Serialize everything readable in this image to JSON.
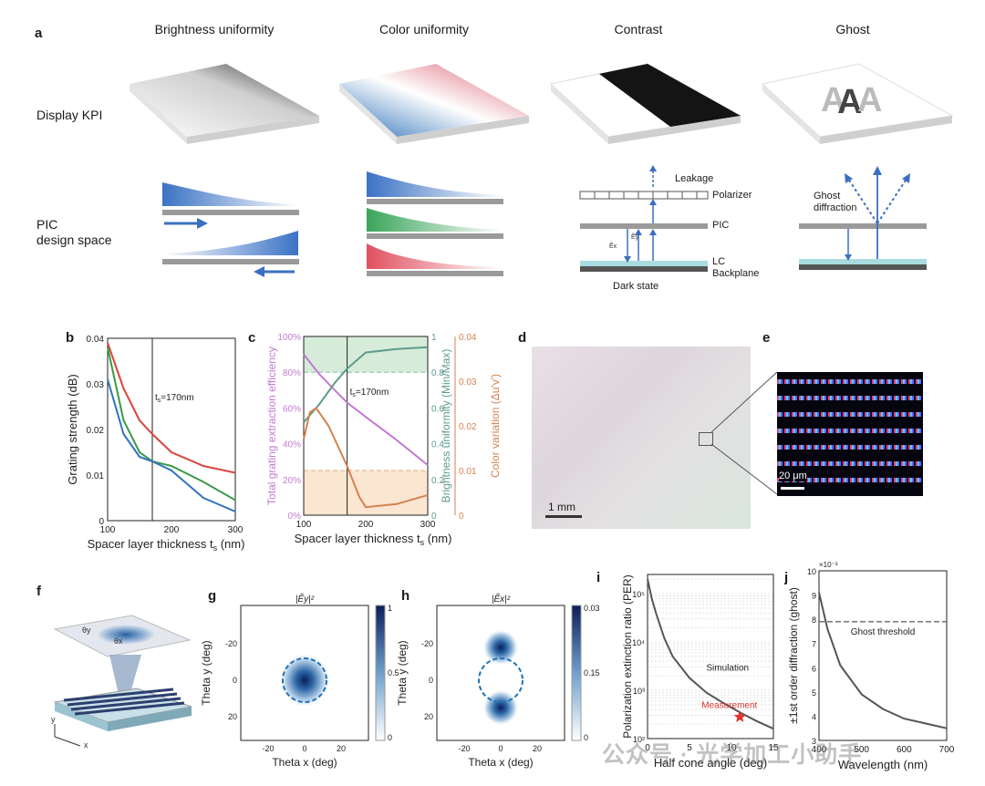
{
  "panel_a": {
    "label": "a",
    "columns": [
      "Brightness uniformity",
      "Color uniformity",
      "Contrast",
      "Ghost"
    ],
    "row_display": "Display KPI",
    "row_pic": [
      "PIC",
      "design space"
    ],
    "contrast_labels": {
      "leakage": "Leakage",
      "polarizer": "Polarizer",
      "pic": "PIC",
      "lc": "LC",
      "backplane": "Backplane",
      "dark": "Dark state"
    },
    "ghost_labels": {
      "diffraction": [
        "Ghost",
        "diffraction"
      ]
    }
  },
  "panel_b": {
    "label": "b",
    "annotation": "t",
    "annotation_sub": "s",
    "annotation_tail": "=170nm",
    "ylabel": "Grating strength (dB)",
    "xlabel": "Spacer layer thickness t",
    "xlabel_sub": "s",
    "xlabel_tail": " (nm)",
    "yticks": [
      "0",
      "0.01",
      "0.02",
      "0.03",
      "0.04"
    ],
    "xticks": [
      "100",
      "200",
      "300"
    ]
  },
  "panel_c": {
    "label": "c",
    "annotation": "t",
    "annotation_sub": "s",
    "annotation_tail": "=170nm",
    "ylabel_left": "Total grating extraction efficiency",
    "ylabel_mid": "Brightness uniformity (Min/Max)",
    "ylabel_right": "Color variation (Δu'v')",
    "xlabel": "Spacer layer thickness t",
    "xlabel_sub": "s",
    "xlabel_tail": " (nm)",
    "yticks_left": [
      "0%",
      "20%",
      "40%",
      "60%",
      "80%",
      "100%"
    ],
    "yticks_mid": [
      "0",
      "0.2",
      "0.4",
      "0.6",
      "0.8",
      "1"
    ],
    "yticks_right": [
      "0",
      "0.01",
      "0.02",
      "0.03",
      "0.04"
    ],
    "xticks": [
      "100",
      "200",
      "300"
    ]
  },
  "panel_d": {
    "label": "d",
    "scalebar": "1 mm"
  },
  "panel_e": {
    "label": "e",
    "scalebar": "20 μm"
  },
  "panel_f": {
    "label": "f",
    "axes": {
      "x": "x",
      "y": "y",
      "theta_y": "θy",
      "theta_x": "θx"
    }
  },
  "panel_g": {
    "label": "g",
    "title": "|Ẽy|²",
    "xlabel": "Theta x (deg)",
    "ylabel": "Theta y (deg)",
    "xticks": [
      "-20",
      "0",
      "20"
    ],
    "yticks": [
      "-20",
      "0",
      "20"
    ],
    "cbar": [
      "1",
      "0.5",
      "0"
    ]
  },
  "panel_h": {
    "label": "h",
    "title": "|Ẽx|²",
    "xlabel": "Theta x (deg)",
    "ylabel": "Theta y (deg)",
    "xticks": [
      "-20",
      "0",
      "20"
    ],
    "yticks": [
      "-20",
      "0",
      "20"
    ],
    "cbar": [
      "0.03",
      "0.15",
      "0"
    ]
  },
  "panel_i": {
    "label": "i",
    "ylabel": "Polarization extinction ratio (PER)",
    "xlabel": "Half cone angle (deg)",
    "yticks": [
      "10²",
      "10³",
      "10⁴",
      "10⁵"
    ],
    "xticks": [
      "0",
      "5",
      "10",
      "15"
    ],
    "sim_label": "Simulation",
    "meas_label": "Measurement"
  },
  "panel_j": {
    "label": "j",
    "ylabel": "±1st order diffraction (ghost)",
    "xlabel": "Wavelength (nm)",
    "yscale_note": "×10⁻³",
    "yticks": [
      "3",
      "4",
      "5",
      "6",
      "7",
      "8",
      "9",
      "10"
    ],
    "xticks": [
      "400",
      "500",
      "600",
      "700"
    ],
    "threshold_label": "Ghost threshold"
  },
  "watermark": "公众号 · 光学加工小助手",
  "chart_data": [
    {
      "type": "line",
      "panel": "b",
      "xlim": [
        100,
        300
      ],
      "ylim": [
        0,
        0.04
      ],
      "vline": 170,
      "series": [
        {
          "color": "#d9443c",
          "x": [
            100,
            125,
            150,
            170,
            200,
            250,
            300
          ],
          "values": [
            0.039,
            0.029,
            0.022,
            0.019,
            0.015,
            0.012,
            0.0105
          ]
        },
        {
          "color": "#3a9a48",
          "x": [
            100,
            125,
            150,
            170,
            200,
            250,
            300
          ],
          "values": [
            0.038,
            0.022,
            0.015,
            0.013,
            0.012,
            0.0085,
            0.0045
          ]
        },
        {
          "color": "#2f74c0",
          "x": [
            100,
            125,
            150,
            170,
            200,
            250,
            300
          ],
          "values": [
            0.031,
            0.019,
            0.014,
            0.013,
            0.011,
            0.005,
            0.002
          ]
        }
      ]
    },
    {
      "type": "line",
      "panel": "c",
      "xlim": [
        100,
        300
      ],
      "vline": 170,
      "series": [
        {
          "axis": "left",
          "ylim": [
            0,
            100
          ],
          "color": "#c27ad2",
          "x": [
            100,
            125,
            150,
            170,
            200,
            250,
            300
          ],
          "values": [
            90,
            79,
            70,
            63,
            55,
            42,
            28
          ]
        },
        {
          "axis": "mid",
          "ylim": [
            0,
            1
          ],
          "color": "#5e9a8c",
          "x": [
            100,
            125,
            150,
            170,
            200,
            250,
            300
          ],
          "values": [
            0.52,
            0.62,
            0.74,
            0.82,
            0.91,
            0.93,
            0.94
          ]
        },
        {
          "axis": "right",
          "ylim": [
            0,
            0.04
          ],
          "color": "#d4824e",
          "x": [
            100,
            110,
            120,
            140,
            170,
            190,
            200,
            250,
            300
          ],
          "values": [
            0.017,
            0.023,
            0.024,
            0.02,
            0.011,
            0.004,
            0.0018,
            0.0025,
            0.0045
          ]
        }
      ],
      "thresholds": {
        "mid": 0.8,
        "right": 0.01
      }
    },
    {
      "type": "line",
      "panel": "i",
      "xlim": [
        0,
        15
      ],
      "ylim": [
        100,
        250000
      ],
      "yscale": "log",
      "series": [
        {
          "name": "Simulation",
          "color": "#555555",
          "x": [
            0,
            0.5,
            1,
            2,
            3,
            5,
            7,
            9,
            11,
            13,
            15
          ],
          "values": [
            200000,
            80000,
            40000,
            12000,
            5000,
            1800,
            900,
            550,
            350,
            230,
            160
          ]
        }
      ],
      "points": [
        {
          "name": "Measurement",
          "x": 11,
          "y": 280,
          "color": "#e0322b"
        }
      ]
    },
    {
      "type": "line",
      "panel": "j",
      "xlim": [
        400,
        700
      ],
      "ylim": [
        3,
        10
      ],
      "yscale_factor": 0.001,
      "series": [
        {
          "color": "#555555",
          "x": [
            400,
            420,
            450,
            500,
            550,
            600,
            650,
            700
          ],
          "values": [
            9.1,
            7.6,
            6.1,
            4.9,
            4.3,
            3.9,
            3.7,
            3.5
          ]
        }
      ],
      "threshold": {
        "label": "Ghost threshold",
        "y": 7.9
      }
    }
  ]
}
